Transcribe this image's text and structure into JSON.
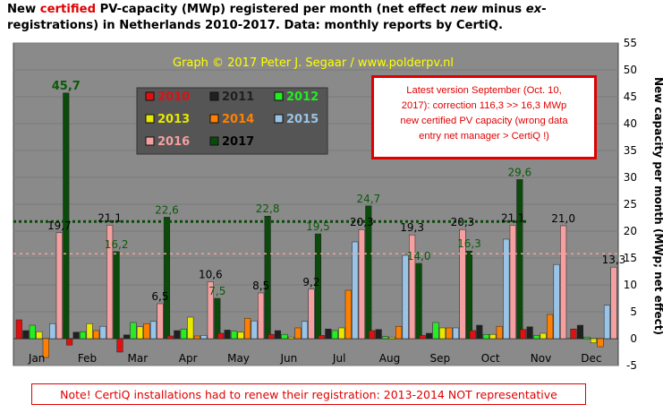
{
  "title": {
    "line1_pre": "New ",
    "line1_red": "certified",
    "line1_post": " PV-capacity (MWp) registered per month (net effect ",
    "line1_new": "new",
    "line1_minus": " minus ",
    "line1_ex": "ex",
    "line1_dash": "-",
    "line2": "registrations) in Netherlands 2010-2017. Data: monthly reports by CertiQ."
  },
  "watermark": "Graph © 2017 Peter J. Segaar / www.polderpv.nl",
  "infobox": {
    "line1": "Latest version September (Oct. 10,",
    "line2": "2017): correction 116,3 >> 16,3 MWp",
    "line3": "new certified PV capacity (wrong data",
    "line4": "entry net manager > CertiQ !)"
  },
  "note": "Note! CertiQ installations  had to renew their registration: 2013-2014  NOT representative",
  "chart_data": {
    "type": "bar",
    "categories": [
      "Jan",
      "Feb",
      "Mar",
      "Apr",
      "May",
      "Jun",
      "Jul",
      "Aug",
      "Sep",
      "Oct",
      "Nov",
      "Dec"
    ],
    "ylabel": "New capacity per month (MWp; net effect)",
    "ylim": [
      -5,
      55
    ],
    "yticks": [
      -5,
      0,
      5,
      10,
      15,
      20,
      25,
      30,
      35,
      40,
      45,
      50,
      55
    ],
    "series": [
      {
        "name": "2010",
        "color": "#e01010",
        "values": [
          3.5,
          -1.2,
          -2.5,
          0.5,
          1.0,
          0.8,
          0.6,
          1.5,
          0.6,
          1.5,
          1.7,
          1.8
        ]
      },
      {
        "name": "2011",
        "color": "#202020",
        "values": [
          1.5,
          1.2,
          0.7,
          1.5,
          1.6,
          1.5,
          1.8,
          1.7,
          1.0,
          2.5,
          2.2,
          2.5
        ]
      },
      {
        "name": "2012",
        "color": "#22ee22",
        "values": [
          2.5,
          1.3,
          3.0,
          1.8,
          1.4,
          0.8,
          1.5,
          0.4,
          3.0,
          0.8,
          0.6,
          0.3
        ]
      },
      {
        "name": "2013",
        "color": "#e8e800",
        "values": [
          1.3,
          2.8,
          2.2,
          4.0,
          1.2,
          0.3,
          2.0,
          0.3,
          2.0,
          0.8,
          1.0,
          -0.8
        ]
      },
      {
        "name": "2014",
        "color": "#ff8000",
        "values": [
          -3.5,
          1.5,
          2.8,
          0.5,
          3.8,
          2.0,
          9.0,
          2.3,
          2.0,
          2.3,
          4.5,
          -1.5
        ]
      },
      {
        "name": "2015",
        "color": "#99c4e8",
        "values": [
          2.8,
          2.3,
          3.2,
          0.6,
          3.3,
          3.2,
          18.0,
          15.5,
          2.0,
          18.5,
          13.8,
          6.2
        ]
      },
      {
        "name": "2016",
        "color": "#f4a0a0",
        "values": [
          19.7,
          21.1,
          6.5,
          10.6,
          8.5,
          9.2,
          20.3,
          19.3,
          20.3,
          21.1,
          21.0,
          13.3
        ]
      },
      {
        "name": "2017",
        "color": "#0a4a0a",
        "values": [
          45.7,
          16.2,
          22.6,
          7.5,
          22.8,
          19.5,
          24.7,
          14.0,
          16.3,
          29.6,
          null,
          null
        ]
      }
    ],
    "labels_2016": [
      "19,7",
      "21,1",
      "6,5",
      "10,6",
      "8,5",
      "9,2",
      "20,3",
      "19,3",
      "20,3",
      "21,1",
      "21,0",
      "13,3"
    ],
    "labels_2017": [
      "45,7",
      "16,2",
      "22,6",
      "7,5",
      "22,8",
      "19,5",
      "24,7",
      "14,0",
      "16,3",
      "29,6",
      "",
      ""
    ],
    "avg_lines": [
      {
        "series": "2017",
        "value": 21.8,
        "color": "#0a4a0a"
      },
      {
        "series": "2016",
        "value": 15.8,
        "color": "#f4a0a0"
      }
    ],
    "legend_position": "top-left",
    "grid": true
  }
}
